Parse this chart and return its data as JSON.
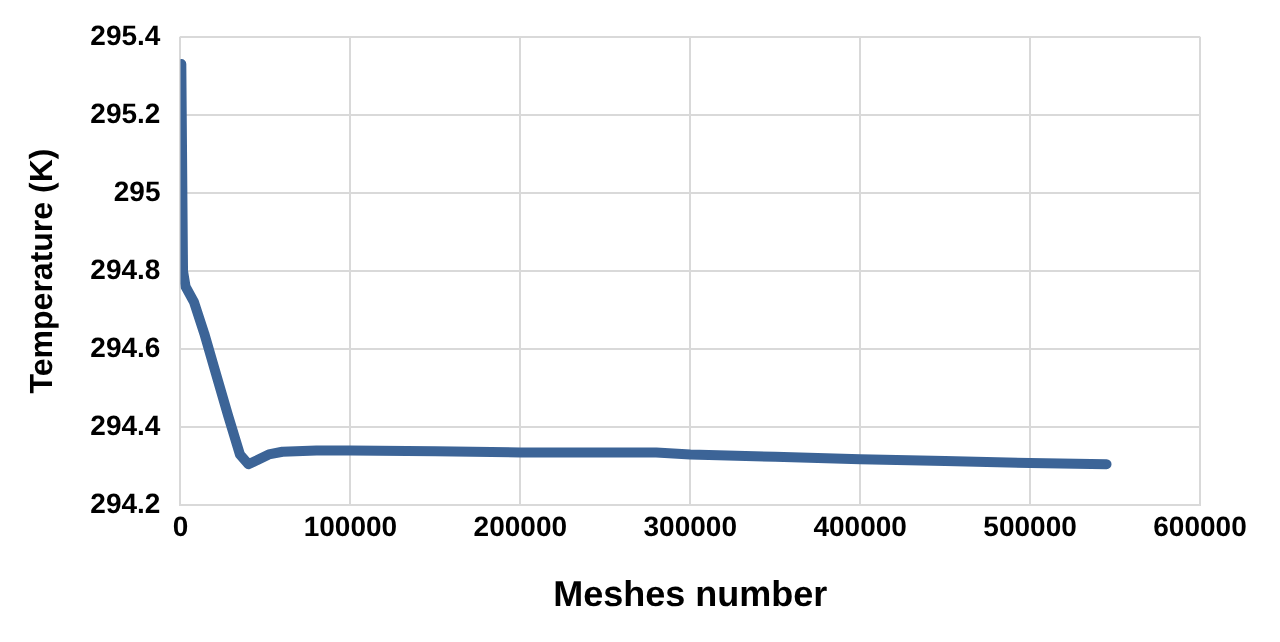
{
  "chart_data": {
    "type": "line",
    "xlabel": "Meshes number",
    "ylabel": "Temperature (K)",
    "x": [
      500,
      1500,
      3000,
      8000,
      14000,
      20000,
      28000,
      35000,
      40000,
      45000,
      52000,
      60000,
      80000,
      100000,
      150000,
      200000,
      250000,
      280000,
      300000,
      350000,
      400000,
      450000,
      500000,
      545000
    ],
    "series": [
      {
        "color": "#3c6497",
        "values": [
          295.33,
          294.8,
          294.76,
          294.72,
          294.64,
          294.55,
          294.43,
          294.33,
          294.305,
          294.315,
          294.33,
          294.337,
          294.34,
          294.34,
          294.338,
          294.335,
          294.335,
          294.335,
          294.33,
          294.324,
          294.318,
          294.313,
          294.308,
          294.305
        ]
      }
    ],
    "xlim": [
      0,
      600000
    ],
    "xticks": [
      0,
      100000,
      200000,
      300000,
      400000,
      500000,
      600000
    ],
    "ylim": [
      294.2,
      295.4
    ],
    "yticks": [
      294.2,
      294.4,
      294.6,
      294.8,
      295,
      295.2,
      295.4
    ],
    "grid": true,
    "legend": false,
    "marker": "none",
    "line_style": "solid"
  }
}
